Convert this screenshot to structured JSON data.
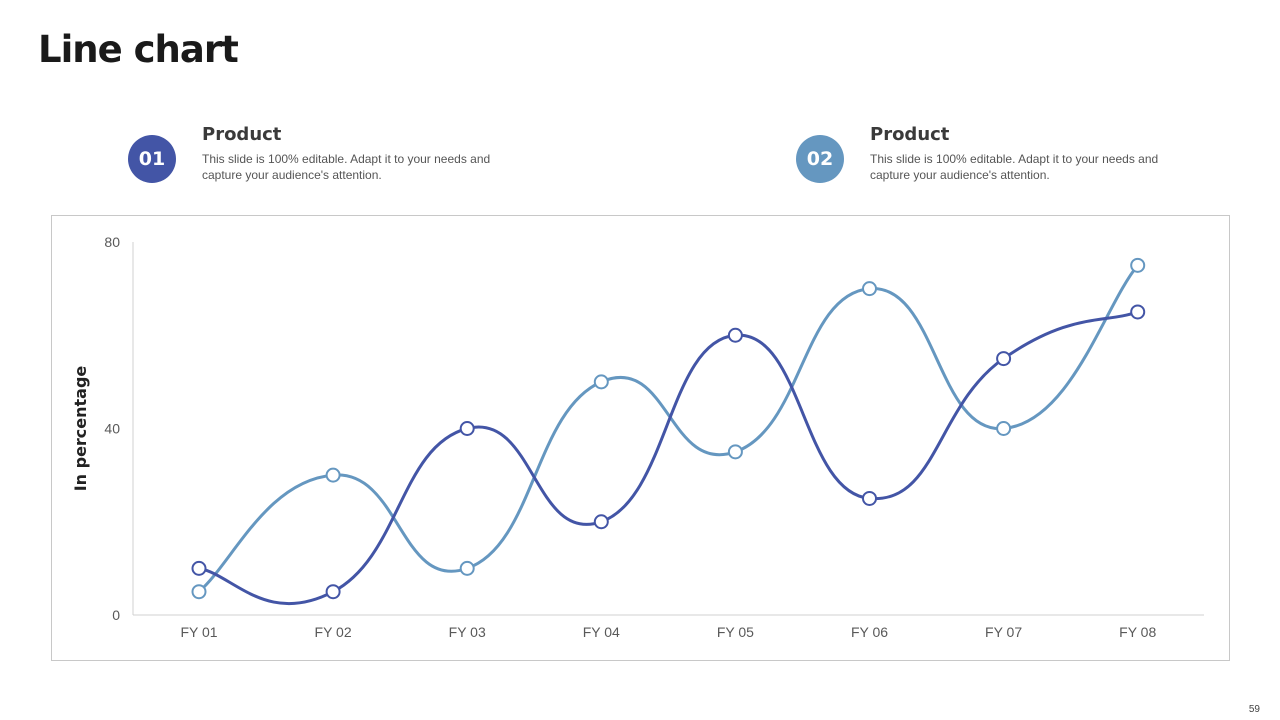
{
  "slide": {
    "title": "Line chart",
    "page_number": "59"
  },
  "legend": [
    {
      "badge": "01",
      "color": "#4355a6",
      "title": "Product",
      "description": "This slide is 100% editable. Adapt it to your needs and capture your audience's attention."
    },
    {
      "badge": "02",
      "color": "#6597c0",
      "title": "Product",
      "description": "This slide is 100% editable. Adapt it to your needs and capture your audience's attention."
    }
  ],
  "chart_data": {
    "type": "line",
    "title": "",
    "xlabel": "",
    "ylabel": "In percentage",
    "categories": [
      "FY 01",
      "FY 02",
      "FY 03",
      "FY 04",
      "FY 05",
      "FY 06",
      "FY 07",
      "FY 08"
    ],
    "ylim": [
      0,
      80
    ],
    "yticks": [
      0,
      40,
      80
    ],
    "grid": false,
    "smooth": true,
    "series": [
      {
        "color": "#4355a6",
        "values": [
          10,
          5,
          40,
          20,
          60,
          25,
          55,
          65
        ]
      },
      {
        "color": "#6597c0",
        "values": [
          5,
          30,
          10,
          50,
          35,
          70,
          40,
          75
        ]
      }
    ]
  }
}
